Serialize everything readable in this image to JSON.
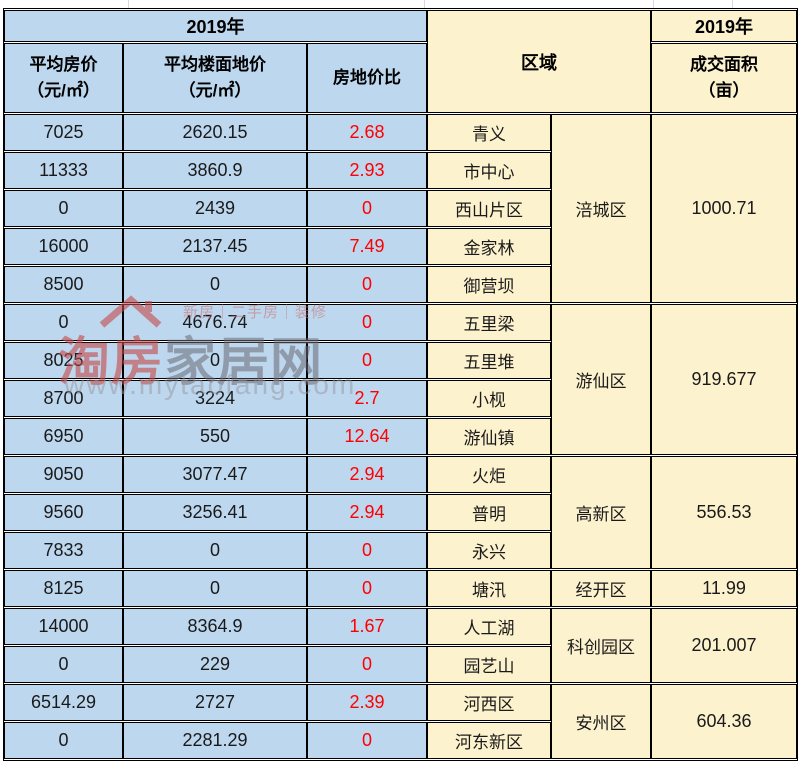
{
  "header": {
    "year_left": "2019年",
    "year_right": "2019年",
    "region": "区域",
    "col_avg_house_price": "平均房价\n（元/㎡）",
    "col_avg_floor_land_price": "平均楼面地价\n（元/㎡）",
    "col_price_ratio": "房地价比",
    "col_deal_area": "成交面积\n（亩）"
  },
  "rows": [
    {
      "price": "7025",
      "land": "2620.15",
      "ratio": "2.68",
      "district": "青义"
    },
    {
      "price": "11333",
      "land": "3860.9",
      "ratio": "2.93",
      "district": "市中心"
    },
    {
      "price": "0",
      "land": "2439",
      "ratio": "0",
      "district": "西山片区"
    },
    {
      "price": "16000",
      "land": "2137.45",
      "ratio": "7.49",
      "district": "金家林"
    },
    {
      "price": "8500",
      "land": "0",
      "ratio": "0",
      "district": "御营坝"
    },
    {
      "price": "0",
      "land": "4676.74",
      "ratio": "0",
      "district": "五里梁"
    },
    {
      "price": "8025",
      "land": "0",
      "ratio": "0",
      "district": "五里堆"
    },
    {
      "price": "8700",
      "land": "3224",
      "ratio": "2.7",
      "district": "小枧"
    },
    {
      "price": "6950",
      "land": "550",
      "ratio": "12.64",
      "district": "游仙镇"
    },
    {
      "price": "9050",
      "land": "3077.47",
      "ratio": "2.94",
      "district": "火炬"
    },
    {
      "price": "9560",
      "land": "3256.41",
      "ratio": "2.94",
      "district": "普明"
    },
    {
      "price": "7833",
      "land": "0",
      "ratio": "0",
      "district": "永兴"
    },
    {
      "price": "8125",
      "land": "0",
      "ratio": "0",
      "district": "塘汛"
    },
    {
      "price": "14000",
      "land": "8364.9",
      "ratio": "1.67",
      "district": "人工湖"
    },
    {
      "price": "0",
      "land": "229",
      "ratio": "0",
      "district": "园艺山"
    },
    {
      "price": "6514.29",
      "land": "2727",
      "ratio": "2.39",
      "district": "河西区"
    },
    {
      "price": "0",
      "land": "2281.29",
      "ratio": "0",
      "district": "河东新区"
    }
  ],
  "regions": [
    {
      "name": "涪城区",
      "area": "1000.71",
      "start": 0,
      "span": 5
    },
    {
      "name": "游仙区",
      "area": "919.677",
      "start": 5,
      "span": 4
    },
    {
      "name": "高新区",
      "area": "556.53",
      "start": 9,
      "span": 3
    },
    {
      "name": "经开区",
      "area": "11.99",
      "start": 12,
      "span": 1
    },
    {
      "name": "科创园区",
      "area": "201.007",
      "start": 13,
      "span": 2
    },
    {
      "name": "安州区",
      "area": "604.36",
      "start": 15,
      "span": 2
    }
  ],
  "watermark": {
    "tagline": "新房｜二手房｜装修",
    "brand_red": "淘房",
    "brand_gray": "家居网",
    "url": "www.mytaofang.com"
  },
  "colors": {
    "section_blue": "#BDD7EE",
    "section_yellow": "#FDF2CE",
    "ratio_red": "#FF0000",
    "border": "#000000"
  }
}
